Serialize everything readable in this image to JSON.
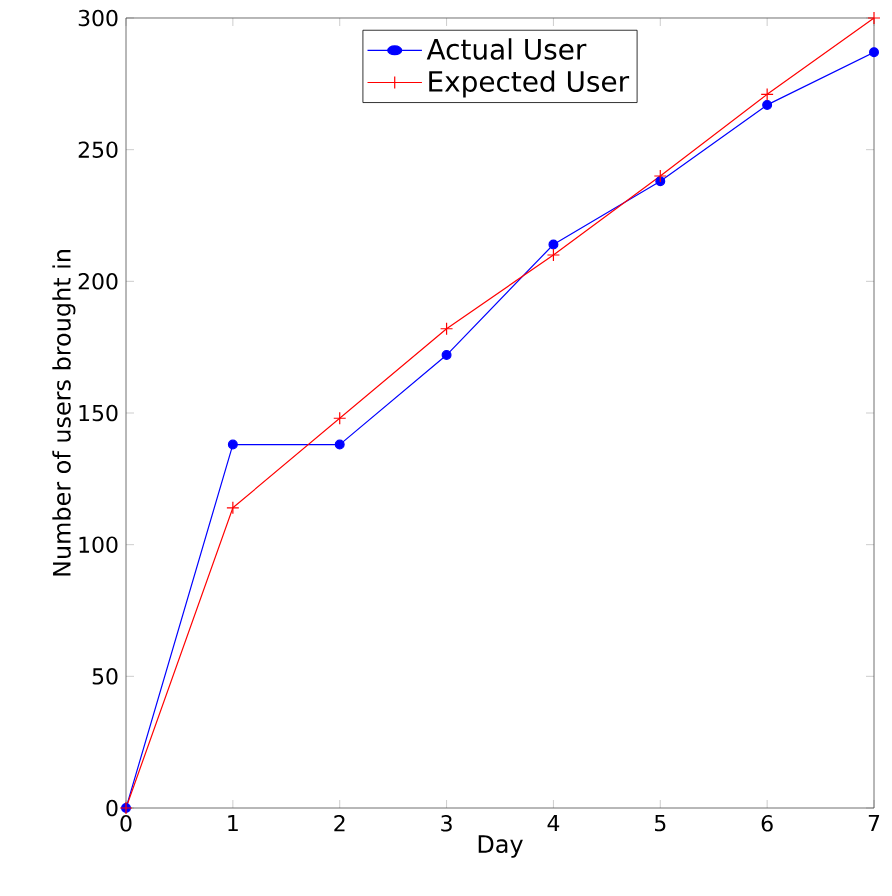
{
  "chart_data": {
    "type": "line",
    "xlabel": "Day",
    "ylabel": "Number of users brought in",
    "x": [
      0,
      1,
      2,
      3,
      4,
      5,
      6,
      7
    ],
    "series": [
      {
        "name": "Actual User",
        "color": "#0000ff",
        "marker": "circle",
        "values": [
          0,
          138,
          138,
          172,
          214,
          238,
          267,
          287
        ]
      },
      {
        "name": "Expected User",
        "color": "#ff0000",
        "marker": "cross",
        "values": [
          0,
          114,
          148,
          182,
          210,
          240,
          271,
          300
        ]
      }
    ],
    "xlim": [
      0,
      7
    ],
    "ylim": [
      0,
      300
    ],
    "xticks": [
      0,
      1,
      2,
      3,
      4,
      5,
      6,
      7
    ],
    "yticks": [
      0,
      50,
      100,
      150,
      200,
      250,
      300
    ],
    "legend": "top",
    "grid": false,
    "line_style": "solid"
  }
}
